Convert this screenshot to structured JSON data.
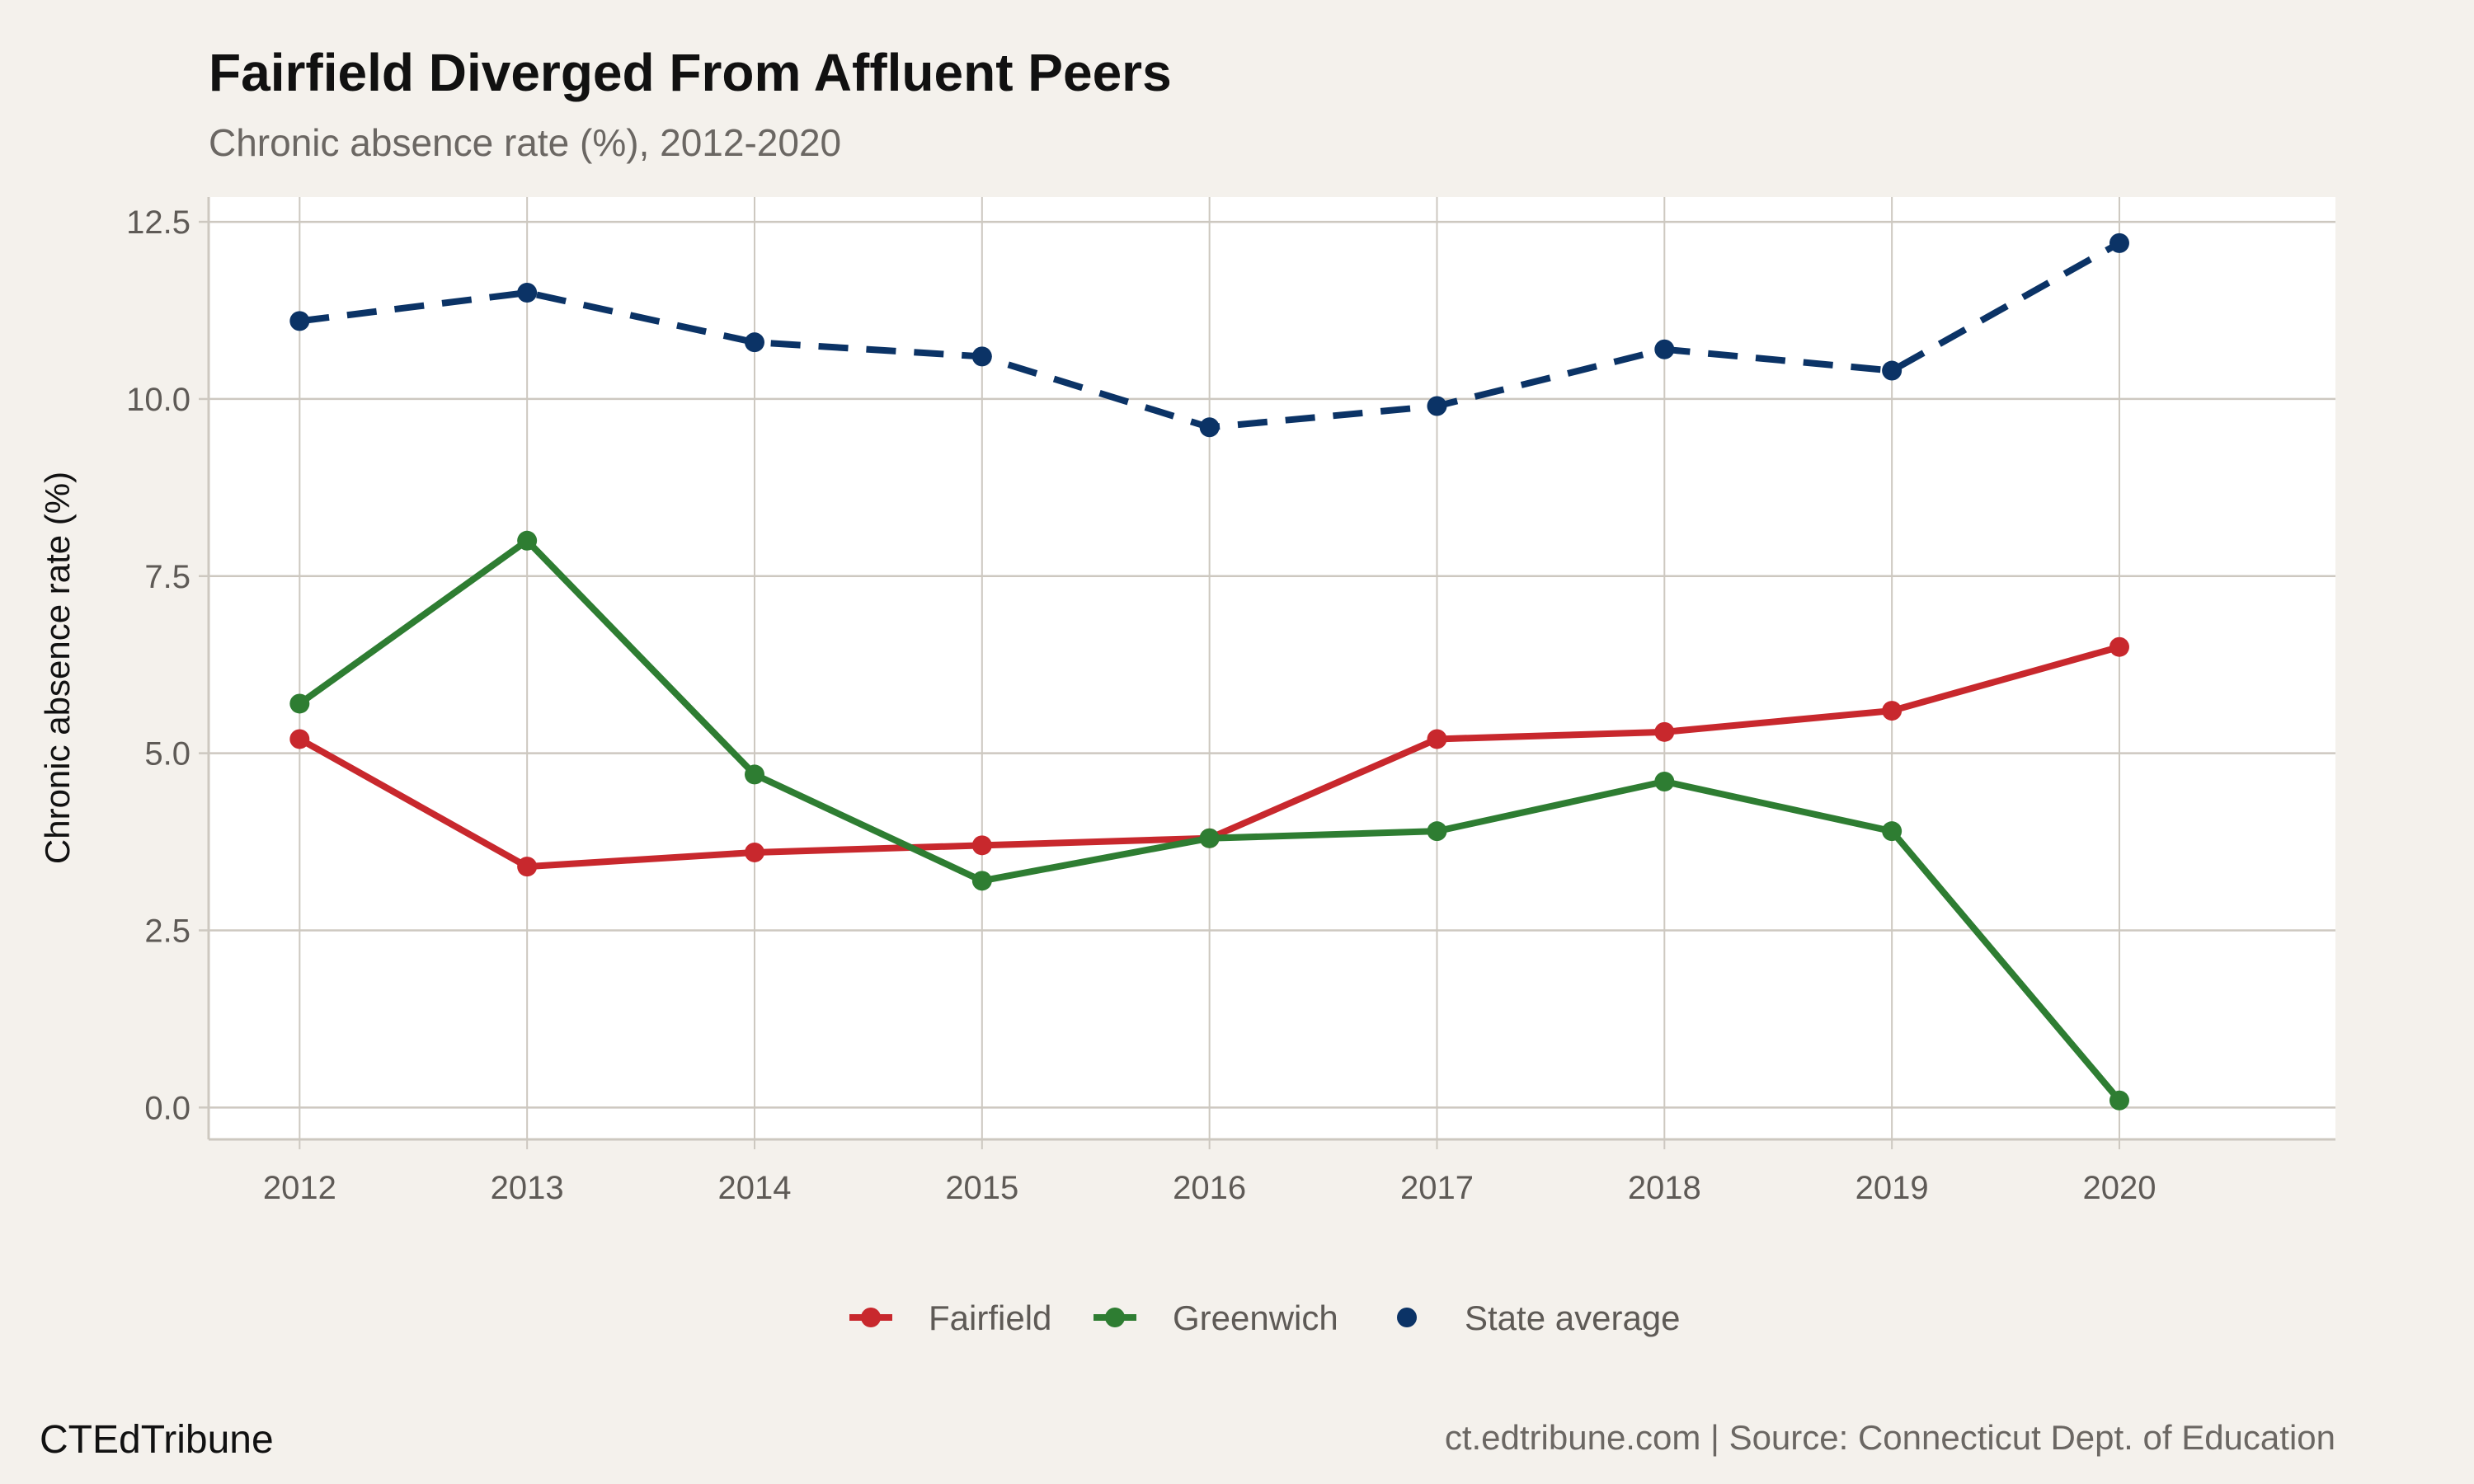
{
  "chart_data": {
    "type": "line",
    "title": "Fairfield Diverged From Affluent Peers",
    "subtitle": "Chronic absence rate (%), 2012-2020",
    "xlabel": "",
    "ylabel": "Chronic absence rate (%)",
    "x": [
      2012,
      2013,
      2014,
      2015,
      2016,
      2017,
      2018,
      2019,
      2020
    ],
    "x_tick_labels": [
      "2012",
      "2013",
      "2014",
      "2015",
      "2016",
      "2017",
      "2018",
      "2019",
      "2020"
    ],
    "y_tick_labels": [
      "0.0",
      "2.5",
      "5.0",
      "7.5",
      "10.0",
      "12.5"
    ],
    "y_ticks": [
      0,
      2.5,
      5,
      7.5,
      10,
      12.5
    ],
    "xlim": [
      2011.6,
      2020.95
    ],
    "ylim": [
      -0.45,
      12.85
    ],
    "grid": true,
    "legend_position": "bottom",
    "series": [
      {
        "name": "Fairfield",
        "color": "#c8282d",
        "dashed": false,
        "values": [
          5.2,
          3.4,
          3.6,
          3.7,
          3.8,
          5.2,
          5.3,
          5.6,
          6.5
        ]
      },
      {
        "name": "Greenwich",
        "color": "#2e7d32",
        "dashed": false,
        "values": [
          5.7,
          8.0,
          4.7,
          3.2,
          3.8,
          3.9,
          4.6,
          3.9,
          0.1
        ]
      },
      {
        "name": "State average",
        "color": "#0b3366",
        "dashed": true,
        "values": [
          11.1,
          11.5,
          10.8,
          10.6,
          9.6,
          9.9,
          10.7,
          10.4,
          12.2
        ]
      }
    ]
  },
  "footer": {
    "brand": "CTEdTribune",
    "caption": "ct.edtribune.com | Source: Connecticut Dept. of Education"
  },
  "colors": {
    "background": "#f4f1ec",
    "panel": "#ffffff",
    "grid": "#cdc8c0"
  }
}
